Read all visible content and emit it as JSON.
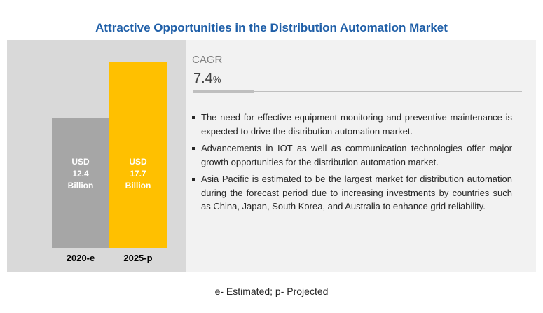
{
  "title": "Attractive Opportunities in the Distribution Automation Market",
  "cagr": {
    "label": "CAGR",
    "value": "7.4",
    "unit": "%"
  },
  "bullets": [
    "The need for effective equipment monitoring and preventive maintenance is expected to drive the distribution automation market.",
    "Advancements in IOT as well as communication technologies offer major growth opportunities for the distribution automation market.",
    "Asia Pacific is estimated to be the largest market for distribution automation during the forecast period due to increasing investments by countries such as China, Japan, South Korea, and Australia to enhance grid reliability."
  ],
  "footnote": "e- Estimated; p- Projected",
  "chart_data": {
    "type": "bar",
    "categories": [
      "2020-e",
      "2025-p"
    ],
    "values": [
      12.4,
      17.7
    ],
    "data_labels": [
      [
        "USD",
        "12.4",
        "Billion"
      ],
      [
        "USD",
        "17.7",
        "Billion"
      ]
    ],
    "colors": [
      "#a6a6a6",
      "#ffc000"
    ],
    "label_color": "#ffffff",
    "ylim": [
      0,
      17.7
    ],
    "grid": false
  }
}
